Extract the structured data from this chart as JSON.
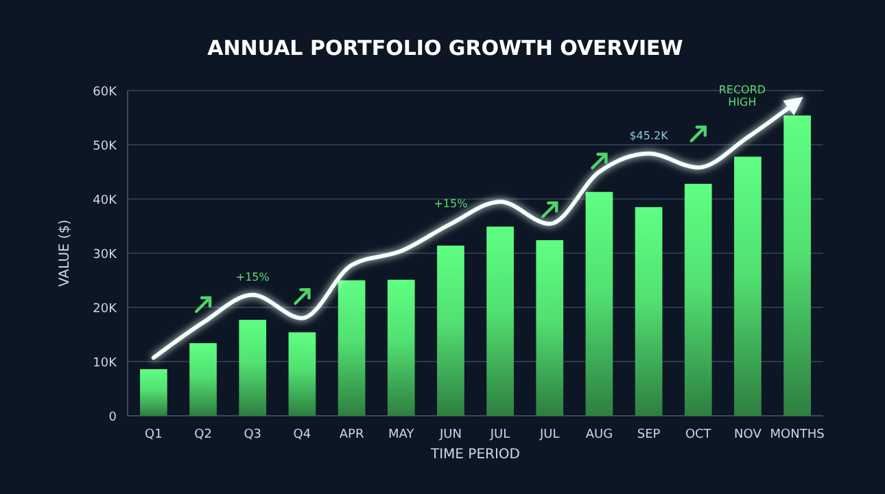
{
  "chart_data": {
    "type": "bar",
    "title": "ANNUAL PORTFOLIO GROWTH OVERVIEW",
    "xlabel": "TIME PERIOD",
    "ylabel": "VALUE ($)",
    "categories": [
      "Q1",
      "Q2",
      "Q3",
      "Q4",
      "APR",
      "MAY",
      "JUN",
      "JUL",
      "JUL",
      "AUG",
      "SEP",
      "OCT",
      "NOV",
      "MONTHS"
    ],
    "series": [
      {
        "color": "#52e072",
        "values": [
          8.6,
          13.4,
          17.7,
          15.4,
          25,
          25.1,
          31.4,
          34.9,
          32.4,
          41.3,
          38.5,
          42.8,
          47.8,
          55.4
        ]
      },
      {
        "type": "line",
        "color": "#f2fffa",
        "values": [
          10.7,
          17.2,
          22.3,
          18,
          27.8,
          30.4,
          35.4,
          39.5,
          35.4,
          45,
          48.4,
          45.8,
          51.4,
          58
        ]
      }
    ],
    "ylim": [
      0,
      60
    ],
    "yticks": [
      0,
      {
        "value": 10,
        "label": "10K"
      },
      {
        "value": 20,
        "label": "20K"
      },
      {
        "value": 30,
        "label": "30K"
      },
      {
        "value": 40,
        "label": "40K"
      },
      {
        "value": 50,
        "label": "50K"
      },
      {
        "value": 60,
        "label": "60K"
      }
    ],
    "grid": "y",
    "line_style": "solid",
    "annotations": [
      "+15%",
      "+15%",
      "$45.2K",
      "RECORD HIGH"
    ]
  }
}
